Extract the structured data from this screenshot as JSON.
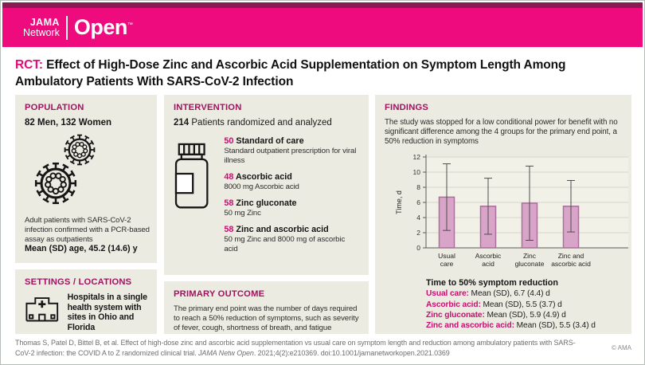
{
  "brand": {
    "jama": "JAMA",
    "network": "Network",
    "open": "Open",
    "tm": "™"
  },
  "title": {
    "tag": "RCT:",
    "text": " Effect of High-Dose Zinc and Ascorbic Acid Supplementation on Symptom Length Among Ambulatory Patients With SARS-CoV-2 Infection"
  },
  "population": {
    "heading": "POPULATION",
    "demographics": "82 Men, 132 Women",
    "description": "Adult patients with SARS-CoV-2 infection confirmed with a PCR-based assay as outpatients",
    "age": "Mean (SD) age, 45.2 (14.6) y"
  },
  "settings": {
    "heading": "SETTINGS / LOCATIONS",
    "description": "Hospitals in a single health system with sites in Ohio and Florida"
  },
  "intervention": {
    "heading": "INTERVENTION",
    "total": "214",
    "total_label": " Patients randomized and analyzed",
    "groups": [
      {
        "n": "50",
        "name": "Standard of care",
        "desc": "Standard outpatient prescription for viral illness"
      },
      {
        "n": "48",
        "name": "Ascorbic acid",
        "desc": "8000 mg Ascorbic acid"
      },
      {
        "n": "58",
        "name": "Zinc gluconate",
        "desc": "50 mg Zinc"
      },
      {
        "n": "58",
        "name": "Zinc and ascorbic acid",
        "desc": "50 mg Zinc and 8000 mg of ascorbic acid"
      }
    ]
  },
  "primary_outcome": {
    "heading": "PRIMARY OUTCOME",
    "text": "The primary end point was the number of days required to reach a 50% reduction of symptoms, such as severity of fever, cough, shortness of breath, and fatigue"
  },
  "findings": {
    "heading": "FINDINGS",
    "summary": "The study was stopped for a low conditional power for benefit with no significant difference among the 4 groups for the primary end point, a 50% reduction in symptoms",
    "stats_title": "Time to 50% symptom reduction",
    "stats": [
      {
        "label": "Usual care:",
        "value": " Mean (SD), 6.7 (4.4) d"
      },
      {
        "label": "Ascorbic acid:",
        "value": " Mean (SD), 5.5 (3.7) d"
      },
      {
        "label": "Zinc gluconate:",
        "value": " Mean (SD), 5.9 (4.9) d"
      },
      {
        "label": "Zinc and ascorbic acid:",
        "value": " Mean (SD), 5.5 (3.4) d"
      }
    ]
  },
  "chart_data": {
    "type": "bar",
    "title": "",
    "ylabel": "Time, d",
    "xlabel": "",
    "ylim": [
      0,
      12
    ],
    "yticks": [
      0,
      2,
      4,
      6,
      8,
      10,
      12
    ],
    "categories": [
      [
        "Usual",
        "care"
      ],
      [
        "Ascorbic",
        "acid"
      ],
      [
        "Zinc",
        "gluconate"
      ],
      [
        "Zinc and",
        "ascorbic acid"
      ]
    ],
    "values": [
      6.7,
      5.5,
      5.9,
      5.5
    ],
    "error_sd": [
      4.4,
      3.7,
      4.9,
      3.4
    ],
    "grid": true,
    "legend_position": "none",
    "bar_color": "#d8a5c9",
    "bar_border": "#a9709c",
    "plot_bg": "#f2f1e8"
  },
  "footer": {
    "citation_plain": "Thomas S, Patel D, Bittel B, et al. Effect of high-dose zinc and ascorbic acid supplementation vs usual care on symptom length and reduction among ambulatory patients with SARS-CoV-2 infection: the COVID A to Z randomized clinical trial. ",
    "citation_italic": "JAMA Netw Open",
    "citation_tail": ". 2021;4(2):e210369. doi:10.1001/jamanetworkopen.2021.0369",
    "copyright": "© AMA"
  },
  "colors": {
    "brand_pink": "#ee0b7d",
    "top_strip_maroon": "#8a1a52",
    "heading_magenta": "#a11261",
    "accent_magenta": "#c41070",
    "panel_bg": "#ecebe1"
  }
}
